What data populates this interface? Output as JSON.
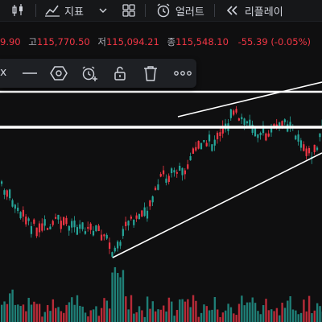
{
  "toolbar": {
    "indicator_label": "지표",
    "alert_label": "얼러트",
    "replay_label": "리플레이"
  },
  "ohlc": {
    "open_value": "9.90",
    "high_label": "고",
    "high_value": "115,770.50",
    "low_label": "저",
    "low_value": "115,094.21",
    "close_label": "종",
    "close_value": "115,548.10",
    "change": "-55.39 (-0.05%)"
  },
  "drawing_toolbar": {
    "close_glyph": "x"
  },
  "colors": {
    "up": "#26a69a",
    "down": "#f23645",
    "background": "#0f0f10",
    "toolbar": "#161719"
  }
}
